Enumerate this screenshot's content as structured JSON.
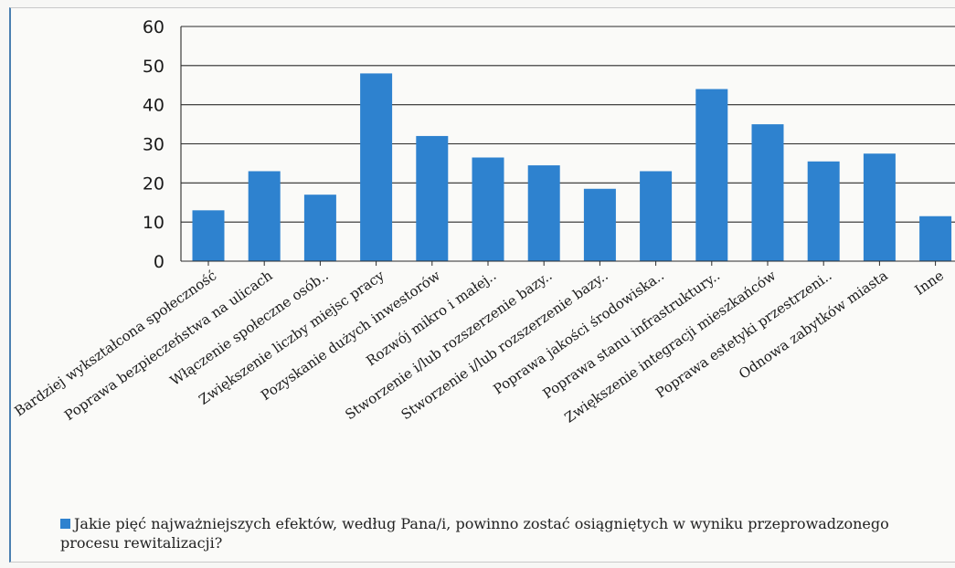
{
  "chart_data": {
    "type": "bar",
    "title": "",
    "xlabel": "",
    "ylabel": "",
    "ylim": [
      0,
      60
    ],
    "yticks": [
      0,
      10,
      20,
      30,
      40,
      50,
      60
    ],
    "grid": true,
    "legend_position": "bottom",
    "bar_color": "#2e82cf",
    "categories": [
      "Bardziej wykształcona społeczność",
      "Poprawa bezpieczeństwa na ulicach",
      "Włączenie społeczne osób..",
      "Zwiększenie liczby miejsc pracy",
      "Pozyskanie dużych inwestorów",
      "Rozwój mikro i małej..",
      "Stworzenie i/lub rozszerzenie bazy..",
      "Stworzenie i/lub rozszerzenie bazy..",
      "Poprawa jakości środowiska..",
      "Poprawa stanu infrastruktury..",
      "Zwiększenie integracji mieszkańców",
      "Poprawa estetyki przestrzeni..",
      "Odnowa zabytków miasta",
      "Inne"
    ],
    "series": [
      {
        "name": "Jakie pięć najważniejszych efektów, według Pana/i, powinno zostać osiągniętych w wyniku przeprowadzonego procesu rewitalizacji?",
        "values": [
          13,
          23,
          17,
          48,
          32,
          26.5,
          24.5,
          18.5,
          23,
          44,
          35,
          25.5,
          27.5,
          11.5
        ]
      }
    ]
  }
}
